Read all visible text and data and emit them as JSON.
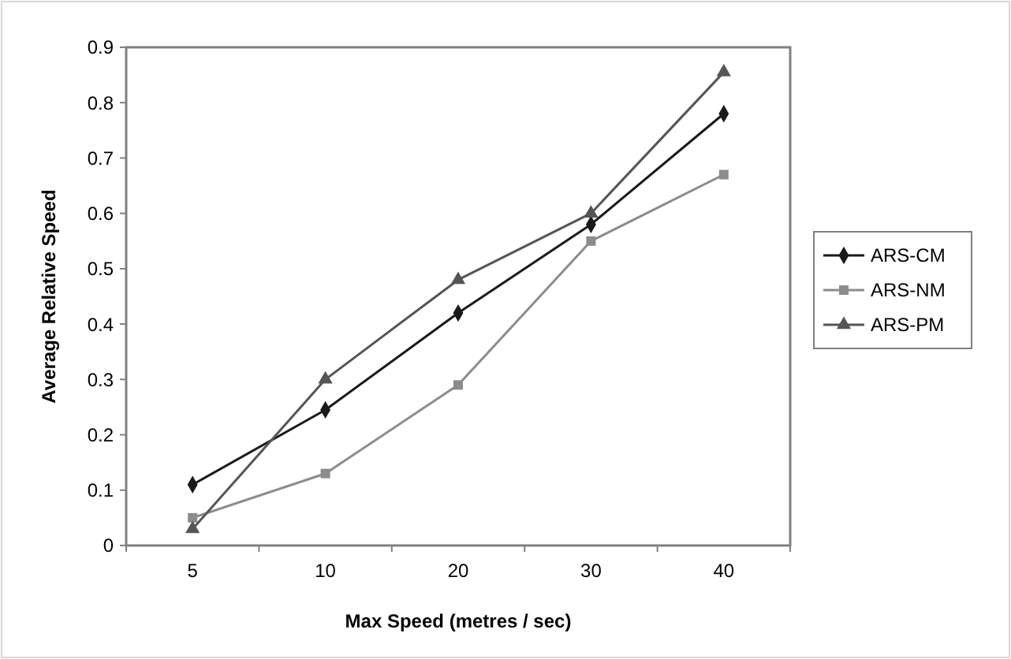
{
  "chart_data": {
    "type": "line",
    "xlabel": "Max Speed (metres / sec)",
    "ylabel": "Average Relative Speed",
    "categories": [
      "5",
      "10",
      "20",
      "30",
      "40"
    ],
    "series": [
      {
        "name": "ARS-CM",
        "color": "#1a1a1a",
        "marker": "diamond",
        "values": [
          0.11,
          0.245,
          0.42,
          0.58,
          0.78
        ]
      },
      {
        "name": "ARS-NM",
        "color": "#8c8c8c",
        "marker": "square",
        "values": [
          0.05,
          0.13,
          0.29,
          0.55,
          0.67
        ]
      },
      {
        "name": "ARS-PM",
        "color": "#555555",
        "marker": "triangle",
        "values": [
          0.03,
          0.3,
          0.48,
          0.6,
          0.855
        ]
      }
    ],
    "ylim": [
      0,
      0.9
    ],
    "yticks": [
      0,
      0.1,
      0.2,
      0.3,
      0.4,
      0.5,
      0.6,
      0.7,
      0.8,
      0.9
    ],
    "grid": false,
    "legend": "right"
  }
}
